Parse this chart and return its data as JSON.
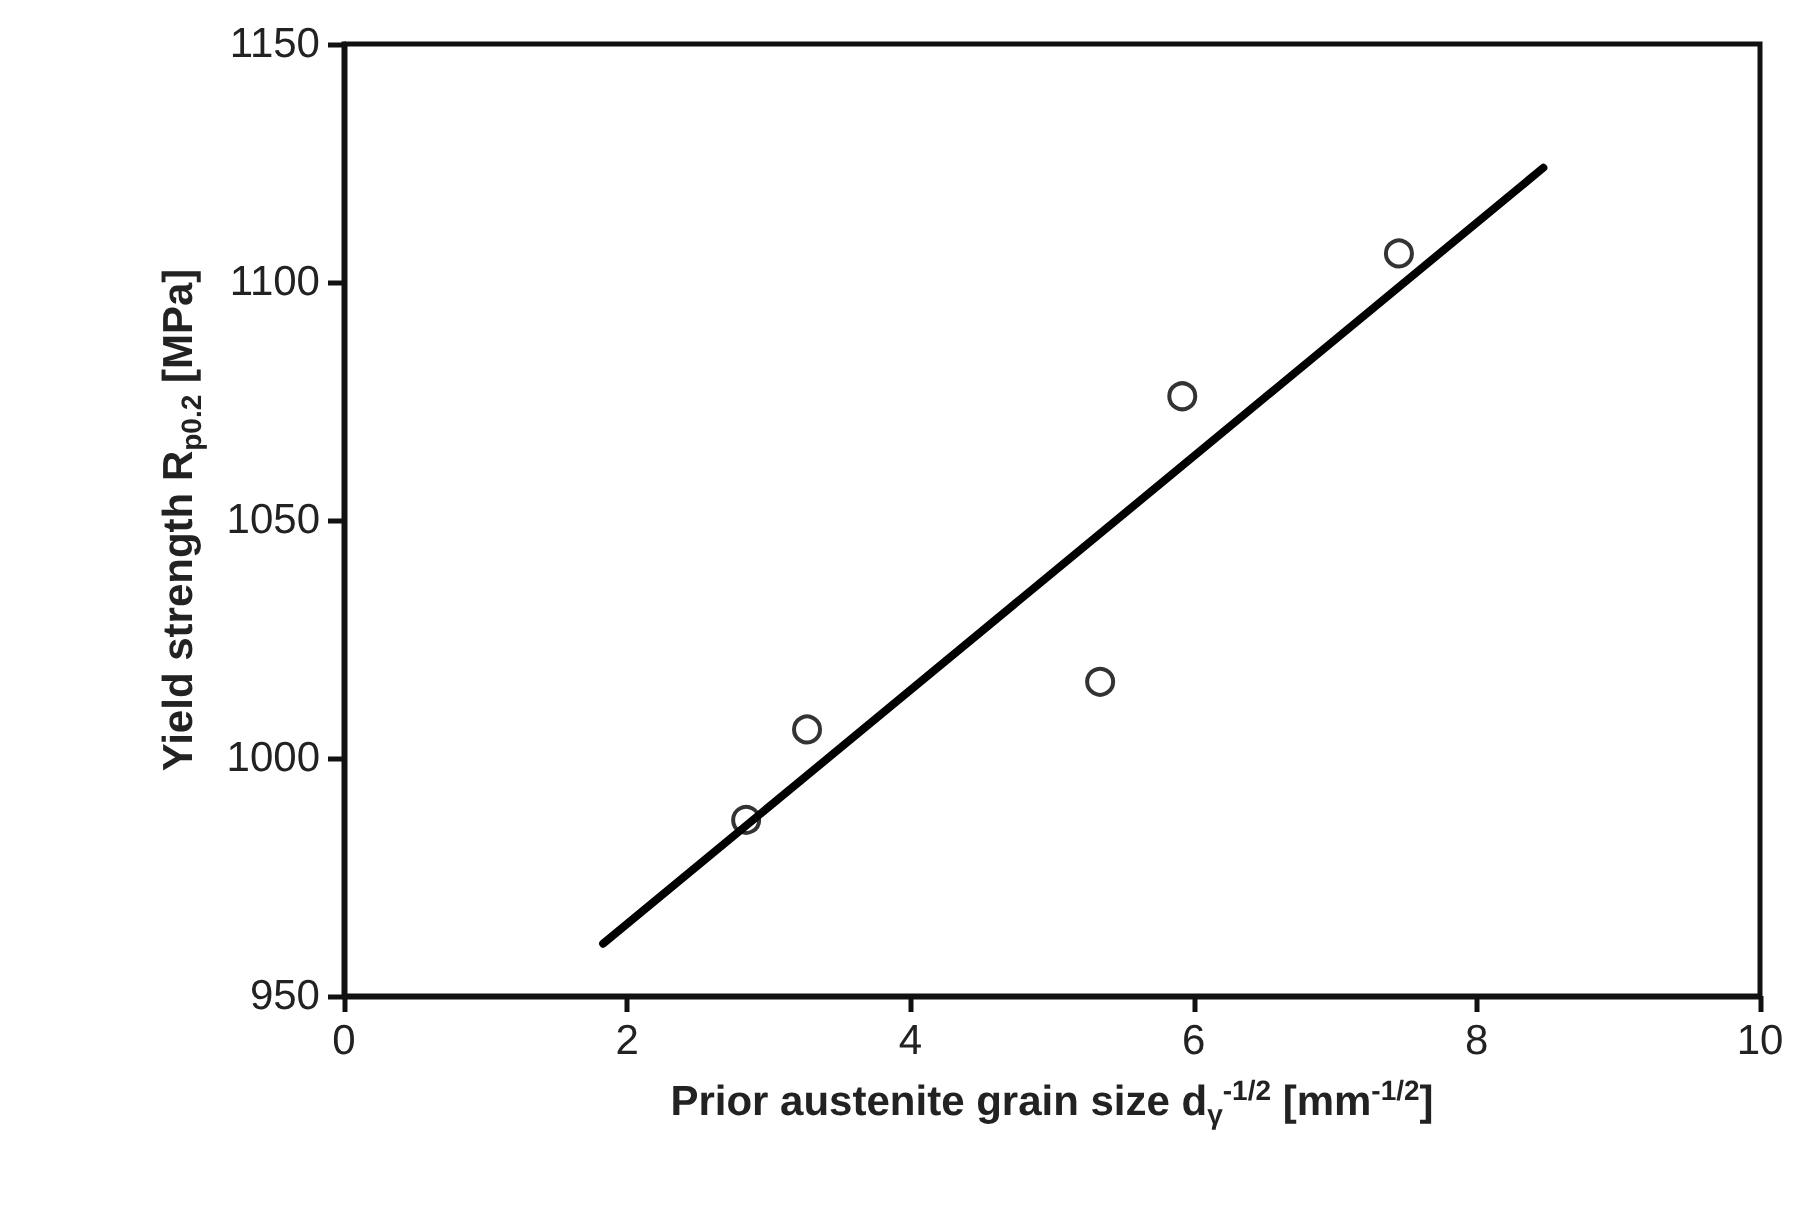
{
  "chart_data": {
    "type": "scatter",
    "xlabel": "Prior austenite grain size d$_{γ}$$^{-1/2}$ [mm$^{-1/2}$]",
    "ylabel": "Yield strength R$_{p0.2}$ [MPa]",
    "xlim": [
      0,
      10
    ],
    "xticks": [
      0,
      2,
      4,
      6,
      8,
      10
    ],
    "ylim": [
      950,
      1150
    ],
    "yticks": [
      950,
      1000,
      1050,
      1100,
      1150
    ],
    "grid": false,
    "marker": "circle",
    "series": [
      {
        "color": "#000000",
        "x": [
          2.84,
          3.27,
          5.34,
          5.92,
          7.45
        ],
        "values": [
          987,
          1006,
          1016,
          1076,
          1106
        ]
      },
      {
        "type": "line",
        "color": "#000000",
        "marker": "none",
        "line_style": "solid",
        "x": [
          1.83,
          8.47
        ],
        "values": [
          961,
          1124
        ]
      }
    ]
  }
}
